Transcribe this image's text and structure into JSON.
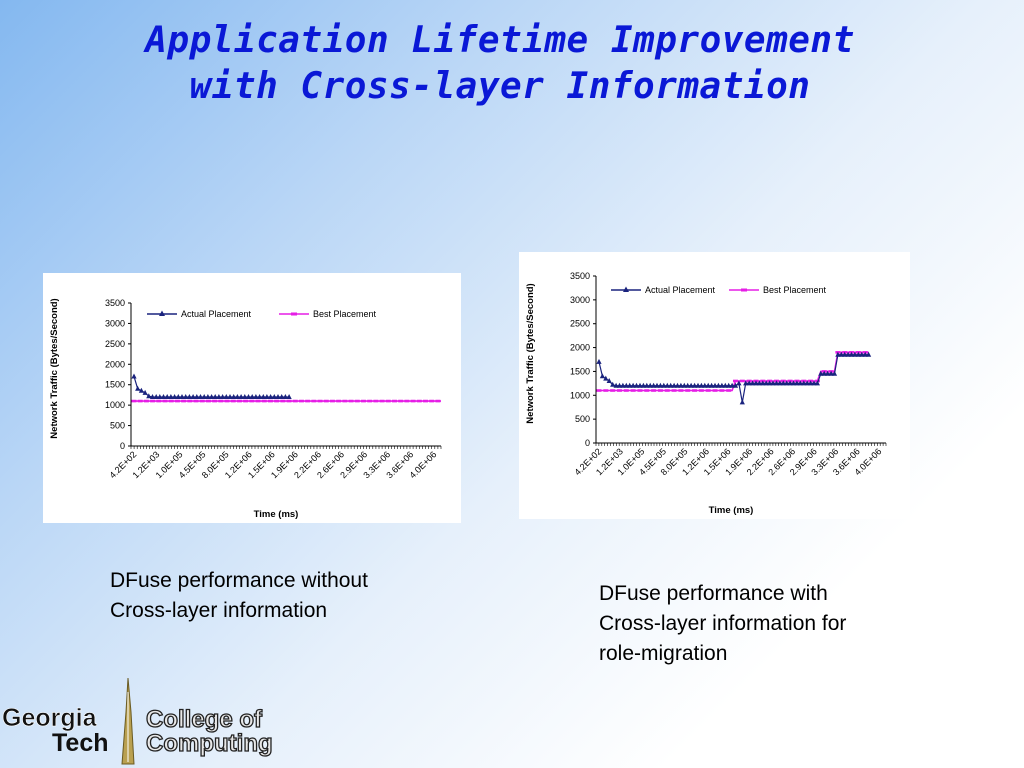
{
  "slide": {
    "title_line1": "Application Lifetime Improvement",
    "title_line2": "with Cross-layer Information"
  },
  "captions": {
    "left": [
      "DFuse performance without",
      "Cross-layer information"
    ],
    "right": [
      "DFuse performance with",
      "Cross-layer information for",
      "role-migration"
    ]
  },
  "logo": {
    "text_georgia": "Georgia",
    "text_tech": "Tech",
    "text_college": "College of",
    "text_computing": "Computing"
  },
  "colors": {
    "title": "#0a18d6",
    "actual_series": "#1a237e",
    "best_series": "#e61ee6"
  },
  "chart_data": [
    {
      "type": "line",
      "title": "",
      "xlabel": "Time (ms)",
      "ylabel": "Network Traffic (Bytes/Second)",
      "ylim": [
        0,
        3500
      ],
      "yticks": [
        0,
        500,
        1000,
        1500,
        2000,
        2500,
        3000,
        3500
      ],
      "xtick_labels": [
        "4.2E+02",
        "1.2E+03",
        "1.0E+05",
        "4.5E+05",
        "8.0E+05",
        "1.2E+06",
        "1.5E+06",
        "1.9E+06",
        "2.2E+06",
        "2.6E+06",
        "2.9E+06",
        "3.3E+06",
        "3.6E+06",
        "4.0E+06"
      ],
      "legend_position": "top",
      "grid": false,
      "series": [
        {
          "name": "Actual Placement",
          "marker": "triangle",
          "values": [
            1700,
            1400,
            1350,
            1300,
            1220,
            1200,
            1200,
            1200,
            1200,
            1200,
            1200,
            1200,
            1200,
            1200,
            1200,
            1200,
            1200,
            1200,
            1200,
            1200,
            1200,
            1200,
            1200,
            1200,
            1200,
            1200,
            1200,
            1200,
            1200,
            1200,
            1200,
            1200,
            1200,
            1200,
            1200,
            1200,
            1200,
            1200,
            1200,
            1200,
            1200,
            1200,
            1200
          ]
        },
        {
          "name": "Best Placement",
          "marker": "dash",
          "values": [
            1100,
            1100,
            1100,
            1100,
            1100,
            1100,
            1100,
            1100,
            1100,
            1100,
            1100,
            1100,
            1100,
            1100,
            1100,
            1100,
            1100,
            1100,
            1100,
            1100,
            1100,
            1100,
            1100,
            1100,
            1100,
            1100,
            1100,
            1100,
            1100,
            1100,
            1100,
            1100,
            1100,
            1100,
            1100,
            1100,
            1100,
            1100,
            1100,
            1100,
            1100,
            1100,
            1100,
            1100,
            1100,
            1100,
            1100,
            1100,
            1100,
            1100,
            1100,
            1100,
            1100,
            1100,
            1100,
            1100,
            1100,
            1100,
            1100,
            1100,
            1100,
            1100,
            1100,
            1100,
            1100,
            1100,
            1100,
            1100,
            1100,
            1100,
            1100,
            1100,
            1100,
            1100,
            1100,
            1100,
            1100,
            1100,
            1100,
            1100,
            1100,
            1100,
            1100,
            1100,
            1100,
            1100,
            1100,
            1100,
            1100,
            1100,
            1100,
            1100,
            1100,
            1100,
            1100,
            1100,
            1100,
            1100,
            1100,
            1100
          ]
        }
      ]
    },
    {
      "type": "line",
      "title": "",
      "xlabel": "Time (ms)",
      "ylabel": "Network Traffic (Bytes/Second)",
      "ylim": [
        0,
        3500
      ],
      "yticks": [
        0,
        500,
        1000,
        1500,
        2000,
        2500,
        3000,
        3500
      ],
      "xtick_labels": [
        "4.2E+02",
        "1.2E+03",
        "1.0E+05",
        "4.5E+05",
        "8.0E+05",
        "1.2E+06",
        "1.5E+06",
        "1.9E+06",
        "2.2E+06",
        "2.6E+06",
        "2.9E+06",
        "3.3E+06",
        "3.6E+06",
        "4.0E+06"
      ],
      "legend_position": "top",
      "grid": false,
      "series": [
        {
          "name": "Actual Placement",
          "marker": "triangle",
          "values": [
            1700,
            1400,
            1350,
            1300,
            1220,
            1200,
            1200,
            1200,
            1200,
            1200,
            1200,
            1200,
            1200,
            1200,
            1200,
            1200,
            1200,
            1200,
            1200,
            1200,
            1200,
            1200,
            1200,
            1200,
            1200,
            1200,
            1200,
            1200,
            1200,
            1200,
            1200,
            1200,
            1200,
            1200,
            1200,
            1200,
            1200,
            1200,
            1200,
            1200,
            1200,
            1250,
            850,
            1250,
            1250,
            1250,
            1250,
            1250,
            1250,
            1250,
            1250,
            1250,
            1250,
            1250,
            1250,
            1250,
            1250,
            1250,
            1250,
            1250,
            1250,
            1250,
            1250,
            1250,
            1250,
            1450,
            1450,
            1450,
            1450,
            1450,
            1850,
            1850,
            1850,
            1850,
            1850,
            1850,
            1850,
            1850,
            1850,
            1850
          ]
        },
        {
          "name": "Best Placement",
          "marker": "dash",
          "values": [
            1100,
            1100,
            1100,
            1100,
            1100,
            1100,
            1100,
            1100,
            1100,
            1100,
            1100,
            1100,
            1100,
            1100,
            1100,
            1100,
            1100,
            1100,
            1100,
            1100,
            1100,
            1100,
            1100,
            1100,
            1100,
            1100,
            1100,
            1100,
            1100,
            1100,
            1100,
            1100,
            1100,
            1100,
            1100,
            1100,
            1100,
            1100,
            1100,
            1100,
            1300,
            1300,
            1300,
            1300,
            1300,
            1300,
            1300,
            1300,
            1300,
            1300,
            1300,
            1300,
            1300,
            1300,
            1300,
            1300,
            1300,
            1300,
            1300,
            1300,
            1300,
            1300,
            1300,
            1300,
            1300,
            1500,
            1500,
            1500,
            1500,
            1500,
            1900,
            1900,
            1900,
            1900,
            1900,
            1900,
            1900,
            1900,
            1900,
            1900
          ]
        }
      ]
    }
  ]
}
